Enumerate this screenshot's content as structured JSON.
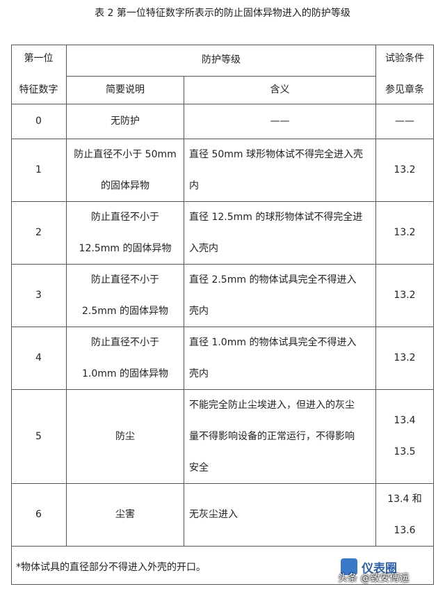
{
  "title": "表 2  第一位特征数字所表示的防止固体异物进入的防护等级",
  "table": {
    "header": {
      "digit": [
        "第一位",
        "特征数字"
      ],
      "protection": "防护等级",
      "brief": "简要说明",
      "meaning": "含义",
      "clause": [
        "试验条件",
        "参见章条"
      ]
    },
    "rows": [
      {
        "digit": "0",
        "brief": [
          "无防护"
        ],
        "meaning": [
          "——"
        ],
        "clause": [
          "——"
        ]
      },
      {
        "digit": "1",
        "brief": [
          "防止直径不小于 50mm",
          "的固体异物"
        ],
        "meaning": [
          "直径 50mm 球形物体试不得完全进入壳",
          "内"
        ],
        "clause": [
          "13.2"
        ]
      },
      {
        "digit": "2",
        "brief": [
          "防止直径不小于",
          "12.5mm 的固体异物"
        ],
        "meaning": [
          "直径 12.5mm 的球形物体试不得完全进",
          "入壳内"
        ],
        "clause": [
          "13.2"
        ]
      },
      {
        "digit": "3",
        "brief": [
          "防止直径不小于",
          "2.5mm 的固体异物"
        ],
        "meaning": [
          "直径 2.5mm 的物体试具完全不得进入",
          "壳内"
        ],
        "clause": [
          "13.2"
        ]
      },
      {
        "digit": "4",
        "brief": [
          "防止直径不小于",
          "1.0mm 的固体异物"
        ],
        "meaning": [
          "直径 1.0mm 的物体试具完全不得进入",
          "壳内"
        ],
        "clause": [
          "13.2"
        ]
      },
      {
        "digit": "5",
        "brief": [
          "防尘"
        ],
        "meaning": [
          "不能完全防止尘埃进入，但进入的灰尘",
          "量不得影响设备的正常运行，不得影响",
          "安全"
        ],
        "clause": [
          "13.4",
          "13.5"
        ]
      },
      {
        "digit": "6",
        "brief": [
          "尘害"
        ],
        "meaning": [
          "无灰尘进入"
        ],
        "clause": [
          "13.4 和",
          "13.6"
        ]
      }
    ],
    "footnote": "*物体试具的直径部分不得进入外壳的开口。"
  },
  "watermark": {
    "logo": "仪表圈",
    "credit": "头条 @致安傅远"
  }
}
